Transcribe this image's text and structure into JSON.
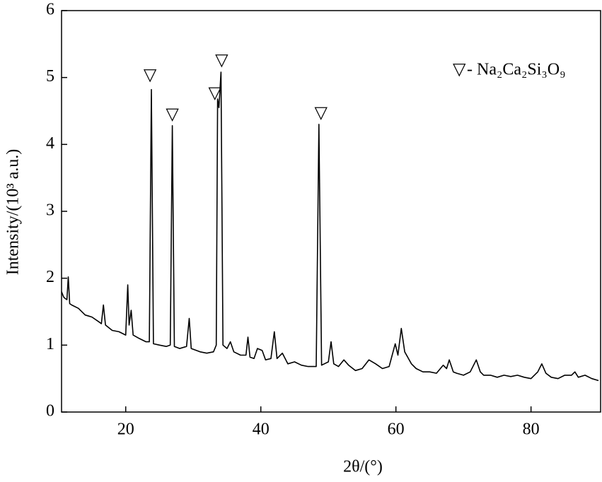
{
  "chart_data": {
    "type": "line",
    "xlabel": "2θ/(°)",
    "ylabel": "Intensity/(10³ a.u.)",
    "xlim": [
      10.5,
      90.3
    ],
    "ylim": [
      0,
      6
    ],
    "xticks": [
      20,
      40,
      60,
      80
    ],
    "yticks": [
      0,
      1,
      2,
      3,
      4,
      5,
      6
    ],
    "legend": {
      "marker": "▽",
      "text": "- Na₂Ca₂Si₃O₉"
    },
    "legend_position": "upper right",
    "series": [
      {
        "color": "#000000",
        "x": [
          10.5,
          10.8,
          11,
          11.3,
          11.5,
          11.7,
          12,
          13,
          14,
          15,
          16,
          16.4,
          16.7,
          17,
          18,
          19,
          20,
          20.3,
          20.5,
          20.8,
          21.1,
          22,
          23,
          23.5,
          23.8,
          24.1,
          25,
          26,
          26.6,
          26.9,
          27.2,
          28,
          29,
          29.4,
          29.7,
          31,
          32,
          33,
          33.4,
          33.6,
          33.8,
          34.1,
          34.4,
          35,
          35.5,
          36,
          37,
          37.8,
          38.1,
          38.4,
          39,
          39.5,
          40.2,
          40.7,
          41.5,
          42,
          42.4,
          43.2,
          44,
          45,
          46,
          47,
          48.2,
          48.6,
          49,
          50,
          50.4,
          50.8,
          51.5,
          52.3,
          53,
          54,
          55,
          56,
          57,
          58,
          59,
          59.9,
          60.3,
          60.8,
          61.3,
          62.3,
          63,
          64,
          65,
          66,
          67,
          67.5,
          67.9,
          68.5,
          69,
          70,
          71,
          71.9,
          72.5,
          73,
          74,
          75,
          76,
          77,
          78,
          79,
          80,
          81,
          81.6,
          82.2,
          83,
          84,
          85,
          86,
          86.5,
          87,
          88,
          89,
          90
        ],
        "values": [
          1.8,
          1.72,
          1.7,
          1.68,
          2.02,
          1.62,
          1.6,
          1.55,
          1.45,
          1.42,
          1.35,
          1.32,
          1.6,
          1.3,
          1.22,
          1.2,
          1.15,
          1.9,
          1.3,
          1.52,
          1.15,
          1.1,
          1.05,
          1.05,
          4.82,
          1.02,
          1.0,
          0.98,
          1.0,
          4.28,
          0.98,
          0.95,
          0.98,
          1.4,
          0.95,
          0.9,
          0.88,
          0.9,
          1.0,
          4.68,
          4.55,
          5.08,
          1.0,
          0.95,
          1.05,
          0.9,
          0.85,
          0.85,
          1.12,
          0.82,
          0.8,
          0.95,
          0.92,
          0.78,
          0.8,
          1.2,
          0.8,
          0.88,
          0.72,
          0.75,
          0.7,
          0.68,
          0.68,
          4.3,
          0.7,
          0.75,
          1.05,
          0.72,
          0.68,
          0.78,
          0.7,
          0.62,
          0.65,
          0.78,
          0.72,
          0.65,
          0.68,
          1.02,
          0.85,
          1.25,
          0.9,
          0.72,
          0.65,
          0.6,
          0.6,
          0.58,
          0.7,
          0.65,
          0.78,
          0.6,
          0.58,
          0.55,
          0.6,
          0.78,
          0.6,
          0.55,
          0.55,
          0.52,
          0.55,
          0.53,
          0.55,
          0.52,
          0.5,
          0.6,
          0.72,
          0.58,
          0.52,
          0.5,
          0.55,
          0.55,
          0.6,
          0.52,
          0.55,
          0.5,
          0.47
        ]
      }
    ],
    "annotations": [
      {
        "text": "▽",
        "x": 23.6,
        "y": 5.02
      },
      {
        "text": "▽",
        "x": 26.9,
        "y": 4.43
      },
      {
        "text": "▽",
        "x": 33.2,
        "y": 4.75
      },
      {
        "text": "▽",
        "x": 34.2,
        "y": 5.24
      },
      {
        "text": "▽",
        "x": 48.9,
        "y": 4.45
      }
    ]
  }
}
